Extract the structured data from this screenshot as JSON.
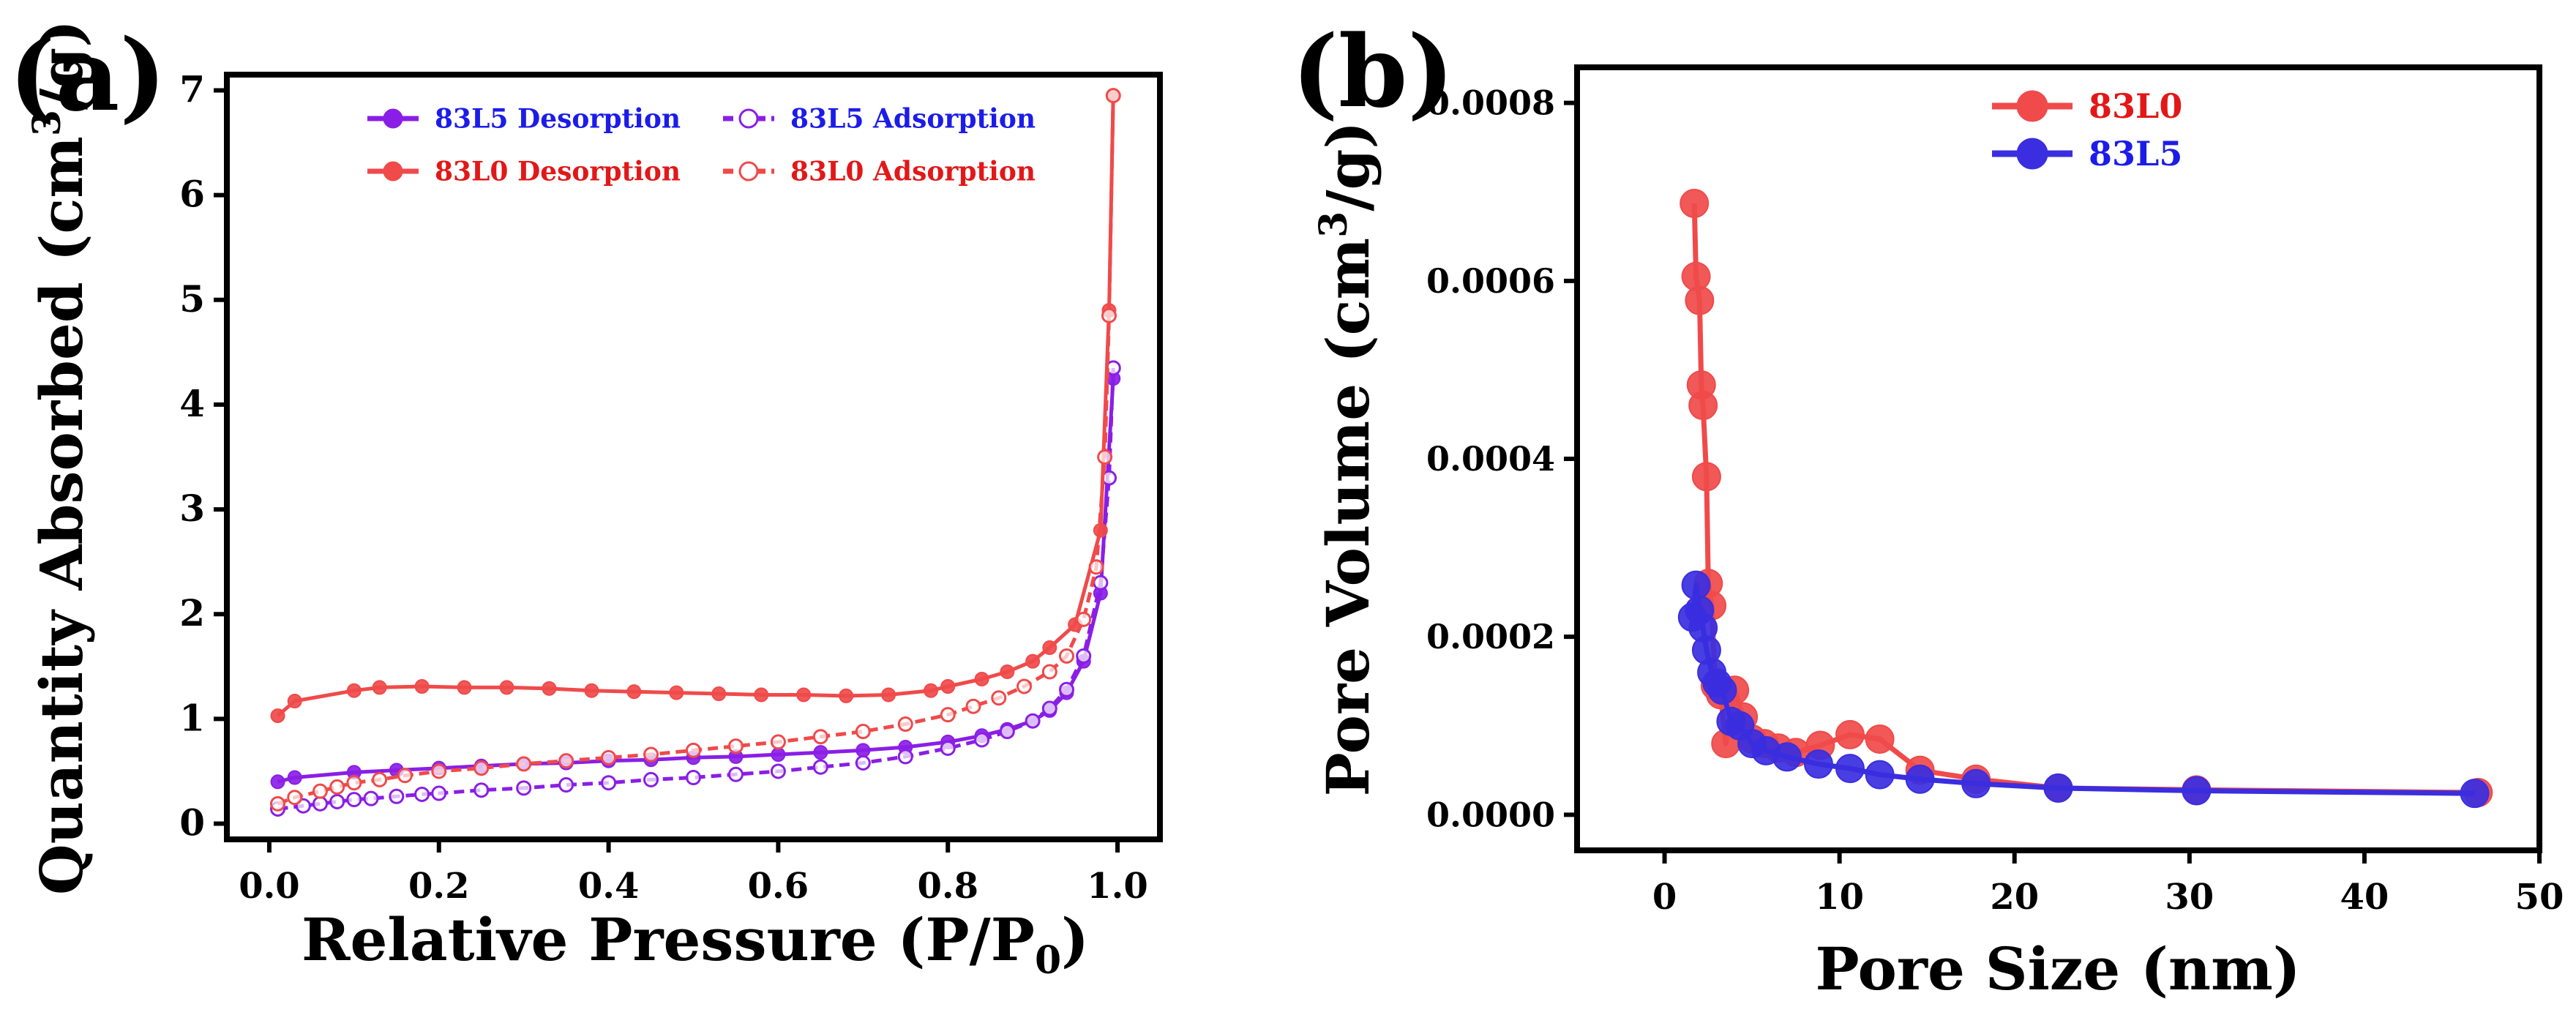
{
  "chart_data": [
    {
      "panel_label": "(a)",
      "type": "line",
      "xlabel": "Relative Pressure (P/P",
      "xlabel_sub": "0",
      "xlabel_end": ")",
      "ylabel": "Quantity Absorbed (cm",
      "ylabel_sup": "3",
      "ylabel_end": "/g)",
      "xlim": [
        -0.05,
        1.05
      ],
      "ylim": [
        -0.15,
        7.15
      ],
      "xticks": [
        0.0,
        0.2,
        0.4,
        0.6,
        0.8,
        1.0
      ],
      "xtick_labels": [
        "0.0",
        "0.2",
        "0.4",
        "0.6",
        "0.8",
        "1.0"
      ],
      "yticks": [
        0,
        1,
        2,
        3,
        4,
        5,
        6,
        7
      ],
      "ytick_labels": [
        "0",
        "1",
        "2",
        "3",
        "4",
        "5",
        "6",
        "7"
      ],
      "legend_position": "top",
      "series": [
        {
          "name": "83L5 Desorption",
          "color": "#8a1ee6",
          "label_color": "#1c1ce8",
          "marker": "filled",
          "x": [
            0.01,
            0.03,
            0.1,
            0.15,
            0.2,
            0.25,
            0.3,
            0.35,
            0.4,
            0.45,
            0.5,
            0.55,
            0.6,
            0.65,
            0.7,
            0.75,
            0.8,
            0.84,
            0.87,
            0.9,
            0.92,
            0.94,
            0.96,
            0.98,
            0.995
          ],
          "y": [
            0.4,
            0.44,
            0.49,
            0.51,
            0.53,
            0.55,
            0.57,
            0.58,
            0.6,
            0.61,
            0.63,
            0.64,
            0.66,
            0.68,
            0.7,
            0.73,
            0.78,
            0.84,
            0.9,
            0.98,
            1.08,
            1.25,
            1.55,
            2.2,
            4.25
          ]
        },
        {
          "name": "83L5 Adsorption",
          "color": "#8a1ee6",
          "label_color": "#1c1ce8",
          "marker": "open",
          "x": [
            0.01,
            0.04,
            0.06,
            0.08,
            0.1,
            0.12,
            0.15,
            0.18,
            0.2,
            0.25,
            0.3,
            0.35,
            0.4,
            0.45,
            0.5,
            0.55,
            0.6,
            0.65,
            0.7,
            0.75,
            0.8,
            0.84,
            0.87,
            0.9,
            0.92,
            0.94,
            0.96,
            0.98,
            0.99,
            0.995
          ],
          "y": [
            0.14,
            0.17,
            0.19,
            0.21,
            0.23,
            0.24,
            0.26,
            0.28,
            0.29,
            0.32,
            0.34,
            0.37,
            0.39,
            0.42,
            0.44,
            0.47,
            0.5,
            0.54,
            0.58,
            0.64,
            0.72,
            0.8,
            0.88,
            0.98,
            1.1,
            1.28,
            1.6,
            2.3,
            3.3,
            4.35
          ]
        },
        {
          "name": "83L0 Desorption",
          "color": "#f04a4a",
          "label_color": "#e21818",
          "marker": "filled",
          "x": [
            0.01,
            0.03,
            0.1,
            0.13,
            0.18,
            0.23,
            0.28,
            0.33,
            0.38,
            0.43,
            0.48,
            0.53,
            0.58,
            0.63,
            0.68,
            0.73,
            0.78,
            0.8,
            0.84,
            0.87,
            0.9,
            0.92,
            0.95,
            0.98,
            0.99,
            0.995
          ],
          "y": [
            1.03,
            1.17,
            1.27,
            1.3,
            1.31,
            1.3,
            1.3,
            1.29,
            1.27,
            1.26,
            1.25,
            1.24,
            1.23,
            1.23,
            1.22,
            1.23,
            1.27,
            1.31,
            1.38,
            1.45,
            1.55,
            1.68,
            1.9,
            2.8,
            4.9,
            6.95
          ]
        },
        {
          "name": "83L0 Adsorption",
          "color": "#f04a4a",
          "label_color": "#e21818",
          "marker": "open",
          "x": [
            0.01,
            0.03,
            0.06,
            0.08,
            0.1,
            0.13,
            0.16,
            0.2,
            0.25,
            0.3,
            0.35,
            0.4,
            0.45,
            0.5,
            0.55,
            0.6,
            0.65,
            0.7,
            0.75,
            0.8,
            0.83,
            0.86,
            0.89,
            0.92,
            0.94,
            0.96,
            0.975,
            0.985,
            0.99,
            0.995
          ],
          "y": [
            0.19,
            0.25,
            0.31,
            0.35,
            0.39,
            0.42,
            0.46,
            0.5,
            0.53,
            0.57,
            0.6,
            0.63,
            0.66,
            0.7,
            0.74,
            0.78,
            0.83,
            0.88,
            0.95,
            1.04,
            1.12,
            1.2,
            1.31,
            1.45,
            1.6,
            1.95,
            2.45,
            3.5,
            4.85,
            6.95
          ]
        }
      ]
    },
    {
      "panel_label": "(b)",
      "type": "line",
      "xlabel": "Pore Size (nm)",
      "ylabel": "Pore Volume (cm",
      "ylabel_sup": "3",
      "ylabel_end": "/g)",
      "xlim": [
        -5,
        50
      ],
      "ylim": [
        -4e-05,
        0.00084
      ],
      "xticks": [
        0,
        10,
        20,
        30,
        40,
        50
      ],
      "xtick_labels": [
        "0",
        "10",
        "20",
        "30",
        "40",
        "50"
      ],
      "yticks": [
        0,
        0.0002,
        0.0004,
        0.0006,
        0.0008
      ],
      "ytick_labels": [
        "0.0000",
        "0.0002",
        "0.0004",
        "0.0006",
        "0.0008"
      ],
      "legend_position": "top-center",
      "series": [
        {
          "name": "83L0",
          "color": "#f04a4a",
          "label_color": "#e21818",
          "marker": "filled",
          "x": [
            1.7,
            1.8,
            2.0,
            2.1,
            2.2,
            2.4,
            2.5,
            2.7,
            2.9,
            3.2,
            3.5,
            4.0,
            4.5,
            5.0,
            5.7,
            6.5,
            7.5,
            8.9,
            10.6,
            12.3,
            14.6,
            17.8,
            22.5,
            30.4,
            46.5
          ],
          "y": [
            0.000687,
            0.000605,
            0.000578,
            0.000483,
            0.00046,
            0.00038,
            0.00026,
            0.000235,
            0.000145,
            0.000135,
            8e-05,
            0.00014,
            0.00011,
            8.5e-05,
            8e-05,
            7.5e-05,
            7e-05,
            7.8e-05,
            9e-05,
            8.5e-05,
            5e-05,
            4e-05,
            3e-05,
            2.8e-05,
            2.5e-05
          ]
        },
        {
          "name": "83L5",
          "color": "#3a2ee0",
          "label_color": "#1c1ce8",
          "marker": "filled",
          "x": [
            1.6,
            1.8,
            2.0,
            2.2,
            2.4,
            2.7,
            3.0,
            3.3,
            3.8,
            4.3,
            5.0,
            5.8,
            7.0,
            8.8,
            10.6,
            12.3,
            14.6,
            17.8,
            22.5,
            30.4,
            46.3
          ],
          "y": [
            0.000222,
            0.000258,
            0.00023,
            0.00021,
            0.000185,
            0.00016,
            0.000148,
            0.00014,
            0.000105,
            0.0001,
            8e-05,
            7.2e-05,
            6.5e-05,
            5.7e-05,
            5.2e-05,
            4.5e-05,
            4e-05,
            3.5e-05,
            3e-05,
            2.7e-05,
            2.4e-05
          ]
        }
      ]
    }
  ]
}
